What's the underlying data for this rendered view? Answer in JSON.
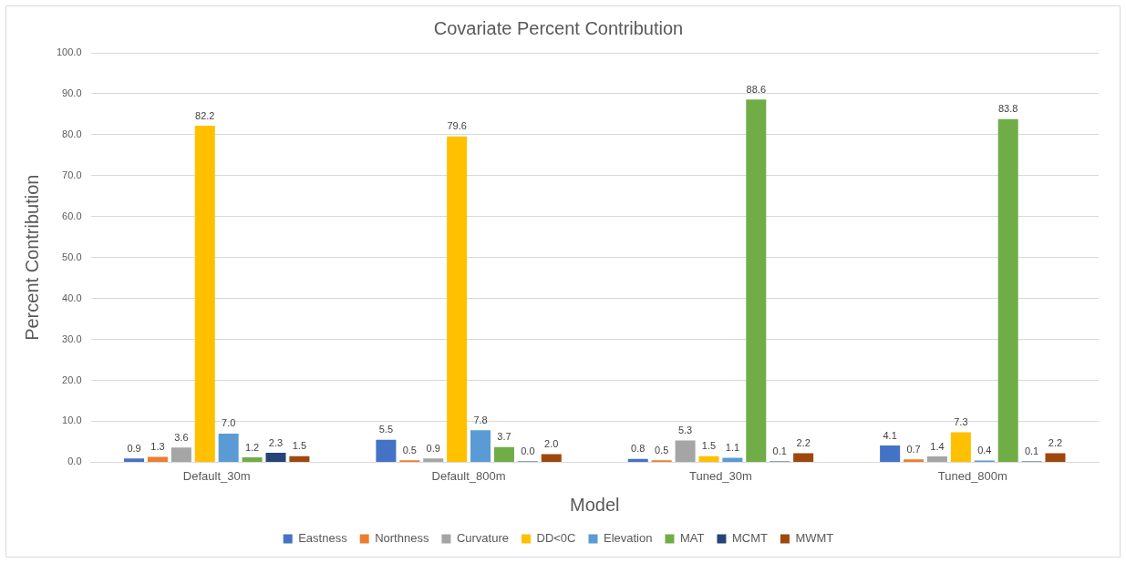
{
  "chart_data": {
    "type": "bar",
    "title": "Covariate Percent Contribution",
    "xlabel": "Model",
    "ylabel": "Percent Contribution",
    "categories": [
      "Default_30m",
      "Default_800m",
      "Tuned_30m",
      "Tuned_800m"
    ],
    "series": [
      {
        "name": "Eastness",
        "color": "#4472c4",
        "values": [
          0.9,
          5.5,
          0.8,
          4.1
        ],
        "value_labels": [
          "0.9",
          "5.5",
          "0.8",
          "4.1"
        ]
      },
      {
        "name": "Northness",
        "color": "#ed7d31",
        "values": [
          1.3,
          0.5,
          0.5,
          0.7
        ],
        "value_labels": [
          "1.3",
          "0.5",
          "0.5",
          "0.7"
        ]
      },
      {
        "name": "Curvature",
        "color": "#a5a5a5",
        "values": [
          3.6,
          0.9,
          5.3,
          1.4
        ],
        "value_labels": [
          "3.6",
          "0.9",
          "5.3",
          "1.4"
        ]
      },
      {
        "name": "DD<0C",
        "color": "#ffc000",
        "values": [
          82.2,
          79.6,
          1.5,
          7.3
        ],
        "value_labels": [
          "82.2",
          "79.6",
          "1.5",
          "7.3"
        ]
      },
      {
        "name": "Elevation",
        "color": "#5b9bd5",
        "values": [
          7.0,
          7.8,
          1.1,
          0.4
        ],
        "value_labels": [
          "7.0",
          "7.8",
          "1.1",
          "0.4"
        ]
      },
      {
        "name": "MAT",
        "color": "#70ad47",
        "values": [
          1.2,
          3.7,
          88.6,
          83.8
        ],
        "value_labels": [
          "1.2",
          "3.7",
          "88.6",
          "83.8"
        ]
      },
      {
        "name": "MCMT",
        "color": "#264478",
        "values": [
          2.3,
          0.0,
          0.1,
          0.1
        ],
        "value_labels": [
          "2.3",
          "0.0",
          "0.1",
          "0.1"
        ]
      },
      {
        "name": "MWMT",
        "color": "#9e480e",
        "values": [
          1.5,
          2.0,
          2.2,
          2.2
        ],
        "value_labels": [
          "1.5",
          "2.0",
          "2.2",
          "2.2"
        ]
      }
    ],
    "ylim": [
      0,
      100
    ],
    "yticks": [
      {
        "value": 0,
        "label": "0.0"
      },
      {
        "value": 10,
        "label": "10.0"
      },
      {
        "value": 20,
        "label": "20.0"
      },
      {
        "value": 30,
        "label": "30.0"
      },
      {
        "value": 40,
        "label": "40.0"
      },
      {
        "value": 50,
        "label": "50.0"
      },
      {
        "value": 60,
        "label": "60.0"
      },
      {
        "value": 70,
        "label": "70.0"
      },
      {
        "value": 80,
        "label": "80.0"
      },
      {
        "value": 90,
        "label": "90.0"
      },
      {
        "value": 100,
        "label": "100.0"
      }
    ],
    "grid": "y",
    "legend": "bottom"
  }
}
